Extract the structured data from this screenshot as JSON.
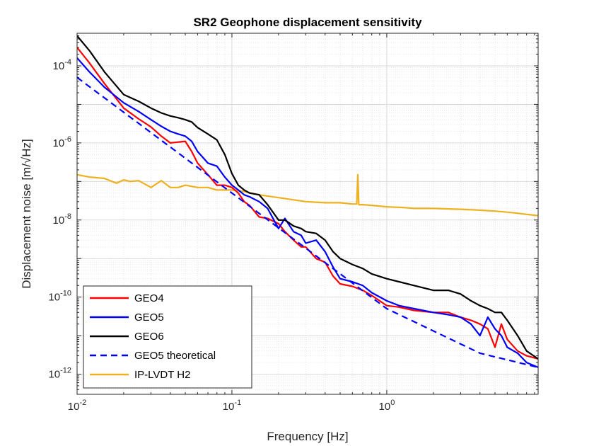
{
  "chart_data": {
    "type": "line",
    "title": "SR2 Geophone displacement sensitivity",
    "xlabel": "Frequency [Hz]",
    "ylabel": "Displacement noise [m/√Hz]",
    "xscale": "log",
    "yscale": "log",
    "xlim": [
      0.01,
      9.5
    ],
    "ylim": [
      3e-13,
      0.0007
    ],
    "grid": true,
    "minor_grid": true,
    "legend_position": "bottom-left",
    "x_ticks": [
      {
        "value": 0.01,
        "mantissa": "10",
        "exponent": "-2"
      },
      {
        "value": 0.1,
        "mantissa": "10",
        "exponent": "-1"
      },
      {
        "value": 1,
        "mantissa": "10",
        "exponent": "0"
      }
    ],
    "y_ticks": [
      {
        "value": 1e-12,
        "mantissa": "10",
        "exponent": "-12"
      },
      {
        "value": 1e-10,
        "mantissa": "10",
        "exponent": "-10"
      },
      {
        "value": 1e-08,
        "mantissa": "10",
        "exponent": "-8"
      },
      {
        "value": 1e-06,
        "mantissa": "10",
        "exponent": "-6"
      },
      {
        "value": 0.0001,
        "mantissa": "10",
        "exponent": "-4"
      }
    ],
    "series": [
      {
        "name": "GEO4",
        "color": "#ff0000",
        "style": "solid",
        "x": [
          0.01,
          0.012,
          0.015,
          0.02,
          0.025,
          0.03,
          0.035,
          0.04,
          0.045,
          0.05,
          0.055,
          0.06,
          0.07,
          0.08,
          0.09,
          0.1,
          0.11,
          0.12,
          0.13,
          0.15,
          0.17,
          0.2,
          0.22,
          0.25,
          0.28,
          0.3,
          0.35,
          0.4,
          0.45,
          0.5,
          0.6,
          0.7,
          0.8,
          1.0,
          1.2,
          1.5,
          2.0,
          2.5,
          3.0,
          3.5,
          4.0,
          4.5,
          5.0,
          5.5,
          6.0,
          7.0,
          8.0,
          9.5
        ],
        "y": [
          0.0003,
          0.00012,
          3.5e-05,
          8e-06,
          4.2e-06,
          2.6e-06,
          1.5e-06,
          1e-06,
          1.05e-06,
          1.1e-06,
          6e-07,
          3e-07,
          1.5e-07,
          8e-08,
          8e-08,
          7e-08,
          5e-08,
          3e-08,
          2.4e-08,
          1.2e-08,
          1.1e-08,
          8e-09,
          5e-09,
          3e-09,
          2e-09,
          2e-09,
          1e-09,
          8e-10,
          3.5e-10,
          2.2e-10,
          1.9e-10,
          1.5e-10,
          1.1e-10,
          6e-11,
          5.5e-11,
          4.5e-11,
          4e-11,
          4e-11,
          3e-11,
          2.5e-11,
          2e-11,
          1.5e-11,
          5e-12,
          2e-11,
          8e-12,
          4e-12,
          3e-12,
          2.5e-12
        ]
      },
      {
        "name": "GEO5",
        "color": "#0000ff",
        "style": "solid",
        "x": [
          0.01,
          0.012,
          0.015,
          0.02,
          0.025,
          0.03,
          0.035,
          0.04,
          0.045,
          0.05,
          0.055,
          0.06,
          0.07,
          0.08,
          0.09,
          0.1,
          0.11,
          0.12,
          0.13,
          0.15,
          0.17,
          0.2,
          0.22,
          0.25,
          0.28,
          0.3,
          0.35,
          0.4,
          0.45,
          0.5,
          0.6,
          0.7,
          0.8,
          1.0,
          1.2,
          1.5,
          2.0,
          2.5,
          3.0,
          3.5,
          4.0,
          4.5,
          5.0,
          5.5,
          6.0,
          7.0,
          8.0,
          9.5
        ],
        "y": [
          0.00016,
          7e-05,
          2.8e-05,
          1.1e-05,
          6.5e-06,
          4e-06,
          2.7e-06,
          2e-06,
          1.7e-06,
          1.5e-06,
          1.1e-06,
          6e-07,
          3e-07,
          2.5e-07,
          1.3e-07,
          8e-08,
          6e-08,
          4.5e-08,
          4e-08,
          3e-08,
          2e-08,
          6e-09,
          1.1e-08,
          5e-09,
          4e-09,
          2.5e-09,
          3e-09,
          1.5e-09,
          6e-10,
          3e-10,
          2.5e-10,
          2e-10,
          1.3e-10,
          8e-11,
          6e-11,
          5e-11,
          4e-11,
          3.5e-11,
          3e-11,
          2e-11,
          1e-11,
          3e-11,
          1.5e-11,
          1e-11,
          5e-12,
          3.5e-12,
          2e-12,
          1.5e-12
        ]
      },
      {
        "name": "GEO6",
        "color": "#000000",
        "style": "solid",
        "x": [
          0.01,
          0.012,
          0.015,
          0.02,
          0.025,
          0.03,
          0.035,
          0.04,
          0.045,
          0.05,
          0.055,
          0.06,
          0.07,
          0.08,
          0.09,
          0.1,
          0.11,
          0.12,
          0.13,
          0.15,
          0.17,
          0.2,
          0.22,
          0.25,
          0.28,
          0.3,
          0.35,
          0.4,
          0.45,
          0.5,
          0.6,
          0.7,
          0.8,
          1.0,
          1.2,
          1.5,
          2.0,
          2.5,
          3.0,
          3.5,
          4.0,
          4.5,
          5.0,
          5.5,
          6.0,
          7.0,
          8.0,
          9.5
        ],
        "y": [
          0.0006,
          0.00025,
          7e-05,
          1.8e-05,
          1.2e-05,
          8e-06,
          6e-06,
          5e-06,
          4.5e-06,
          4e-06,
          3.5e-06,
          2.5e-06,
          1.7e-06,
          1.2e-06,
          5e-07,
          1.6e-07,
          8e-08,
          6e-08,
          5e-08,
          4.5e-08,
          2.5e-08,
          1e-08,
          1e-08,
          7e-09,
          6e-09,
          5e-09,
          4.5e-09,
          3e-09,
          1.5e-09,
          1e-09,
          7e-10,
          5.5e-10,
          4e-10,
          3e-10,
          2.5e-10,
          2e-10,
          1.5e-10,
          1.5e-10,
          1.2e-10,
          8e-11,
          6e-11,
          5e-11,
          4e-11,
          4e-11,
          2.5e-11,
          1e-11,
          4e-12,
          2.5e-12
        ]
      },
      {
        "name": "GEO5 theoretical",
        "color": "#0000ff",
        "style": "dashed",
        "x": [
          0.01,
          0.1,
          1.0,
          4.0,
          9.5
        ],
        "y": [
          5e-05,
          5e-08,
          5e-11,
          3.5e-12,
          1.5e-12
        ]
      },
      {
        "name": "IP-LVDT H2",
        "color": "#edb120",
        "style": "solid",
        "x": [
          0.01,
          0.012,
          0.015,
          0.018,
          0.02,
          0.022,
          0.025,
          0.03,
          0.035,
          0.04,
          0.045,
          0.05,
          0.06,
          0.07,
          0.08,
          0.1,
          0.12,
          0.15,
          0.2,
          0.3,
          0.4,
          0.5,
          0.6,
          0.64,
          0.65,
          0.66,
          0.7,
          0.8,
          1.0,
          1.3,
          1.5,
          2.0,
          3.0,
          4.0,
          5.0,
          6.0,
          7.0,
          8.0,
          9.5
        ],
        "y": [
          1.5e-07,
          1.3e-07,
          1.2e-07,
          9e-08,
          1.1e-07,
          1e-07,
          1.05e-07,
          7e-08,
          1.05e-07,
          7e-08,
          7e-08,
          8e-08,
          7e-08,
          7e-08,
          6e-08,
          6e-08,
          5.5e-08,
          4.5e-08,
          3.8e-08,
          3e-08,
          2.8e-08,
          2.8e-08,
          2.6e-08,
          2.6e-08,
          1.5e-07,
          2.5e-08,
          2.5e-08,
          2.4e-08,
          2.2e-08,
          2.1e-08,
          2e-08,
          2e-08,
          1.9e-08,
          1.8e-08,
          1.7e-08,
          1.6e-08,
          1.5e-08,
          1.4e-08,
          1.3e-08
        ]
      }
    ]
  }
}
